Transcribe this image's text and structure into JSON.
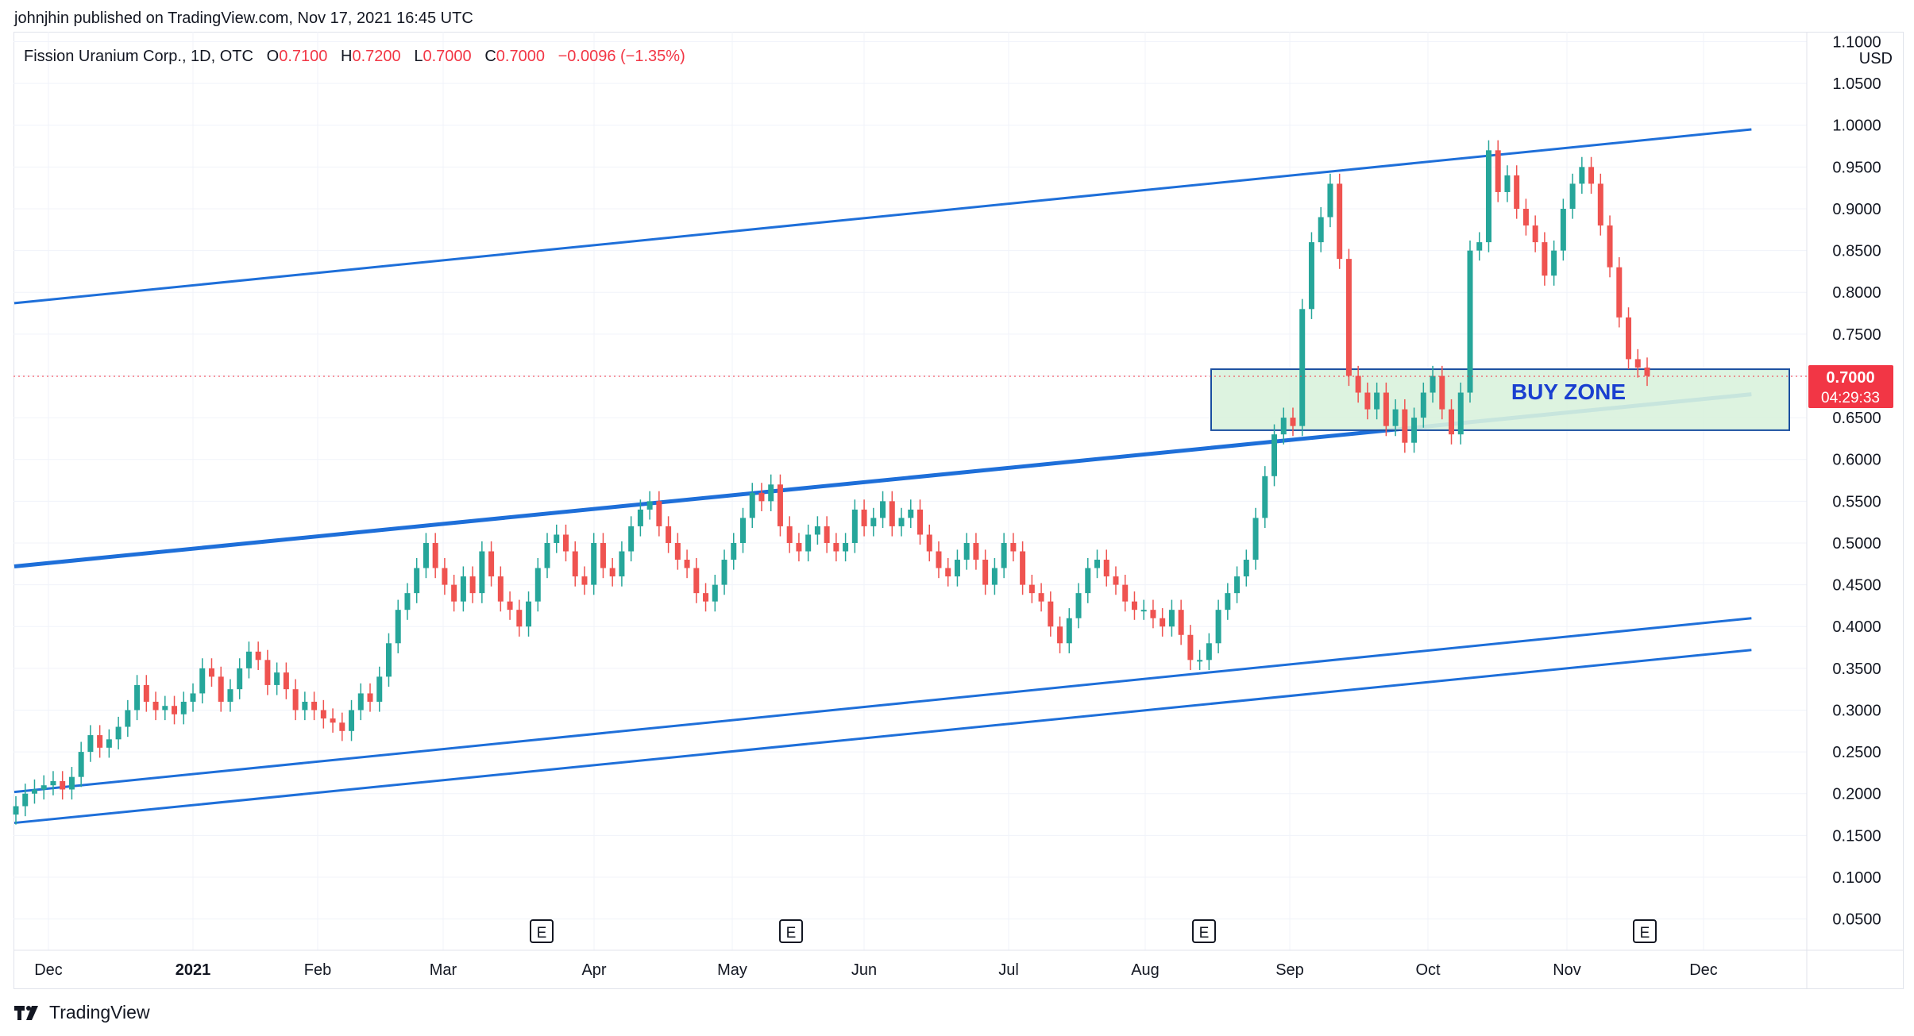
{
  "publish_line": "johnjhin published on TradingView.com, Nov 17, 2021 16:45 UTC",
  "legend": {
    "symbol": "Fission Uranium Corp., 1D, OTC",
    "o_label": "O",
    "o_value": "0.7100",
    "h_label": "H",
    "h_value": "0.7200",
    "l_label": "L",
    "l_value": "0.7000",
    "c_label": "C",
    "c_value": "0.7000",
    "change": "−0.0096 (−1.35%)"
  },
  "footer_brand": "TradingView",
  "colors": {
    "up": "#26a69a",
    "down": "#ef5350",
    "line": "#1e6fd9",
    "zone_fill": "#d9f2dd",
    "zone_border": "#1a4fa0",
    "price_tag": "#f23645"
  },
  "chart_data": {
    "type": "candlestick",
    "currency": "USD",
    "ylim": [
      0.0,
      1.1
    ],
    "y_ticks": [
      "1.1000",
      "1.0500",
      "1.0000",
      "0.9500",
      "0.9000",
      "0.8500",
      "0.8000",
      "0.7500",
      "0.7000",
      "0.6500",
      "0.6000",
      "0.5500",
      "0.5000",
      "0.4500",
      "0.4000",
      "0.3500",
      "0.3000",
      "0.2500",
      "0.2000",
      "0.1500",
      "0.1000",
      "0.0500"
    ],
    "x_ticks": [
      "Dec",
      "2021",
      "Feb",
      "Mar",
      "Apr",
      "May",
      "Jun",
      "Jul",
      "Aug",
      "Sep",
      "Oct",
      "Nov",
      "Dec"
    ],
    "earnings_markers": [
      "E",
      "E",
      "E",
      "E"
    ],
    "last_price": "0.7000",
    "countdown": "04:29:33",
    "annotation": "BUY ZONE",
    "buy_zone": [
      0.635,
      0.708
    ],
    "trendlines": [
      {
        "name": "upper channel",
        "from": [
          "2020-11-23",
          0.787
        ],
        "to": [
          "2021-11-30",
          0.995
        ]
      },
      {
        "name": "middle channel",
        "from": [
          "2020-11-23",
          0.472
        ],
        "to": [
          "2021-11-30",
          0.678
        ]
      },
      {
        "name": "lower channel a",
        "from": [
          "2020-11-23",
          0.202
        ],
        "to": [
          "2021-11-30",
          0.41
        ]
      },
      {
        "name": "lower channel b",
        "from": [
          "2020-11-23",
          0.165
        ],
        "to": [
          "2021-11-30",
          0.372
        ]
      }
    ],
    "closes": [
      0.185,
      0.2,
      0.205,
      0.21,
      0.215,
      0.205,
      0.22,
      0.25,
      0.27,
      0.255,
      0.265,
      0.28,
      0.3,
      0.33,
      0.31,
      0.3,
      0.305,
      0.295,
      0.31,
      0.32,
      0.35,
      0.34,
      0.31,
      0.325,
      0.35,
      0.37,
      0.36,
      0.33,
      0.345,
      0.325,
      0.3,
      0.31,
      0.3,
      0.29,
      0.285,
      0.275,
      0.3,
      0.32,
      0.31,
      0.34,
      0.38,
      0.42,
      0.44,
      0.47,
      0.5,
      0.47,
      0.45,
      0.43,
      0.46,
      0.44,
      0.49,
      0.46,
      0.43,
      0.42,
      0.4,
      0.43,
      0.47,
      0.5,
      0.51,
      0.49,
      0.46,
      0.45,
      0.5,
      0.47,
      0.46,
      0.49,
      0.52,
      0.54,
      0.55,
      0.52,
      0.5,
      0.48,
      0.47,
      0.44,
      0.43,
      0.45,
      0.48,
      0.5,
      0.53,
      0.56,
      0.55,
      0.57,
      0.52,
      0.5,
      0.49,
      0.51,
      0.52,
      0.5,
      0.49,
      0.5,
      0.54,
      0.52,
      0.53,
      0.55,
      0.52,
      0.53,
      0.54,
      0.51,
      0.49,
      0.47,
      0.46,
      0.48,
      0.5,
      0.48,
      0.45,
      0.47,
      0.5,
      0.49,
      0.45,
      0.44,
      0.43,
      0.4,
      0.38,
      0.41,
      0.44,
      0.47,
      0.48,
      0.46,
      0.45,
      0.43,
      0.42,
      0.42,
      0.41,
      0.4,
      0.42,
      0.39,
      0.36,
      0.36,
      0.38,
      0.42,
      0.44,
      0.46,
      0.48,
      0.53,
      0.58,
      0.63,
      0.65,
      0.64,
      0.78,
      0.86,
      0.89,
      0.93,
      0.84,
      0.7,
      0.68,
      0.66,
      0.68,
      0.64,
      0.66,
      0.62,
      0.65,
      0.68,
      0.7,
      0.66,
      0.63,
      0.68,
      0.85,
      0.86,
      0.97,
      0.92,
      0.94,
      0.9,
      0.88,
      0.86,
      0.82,
      0.85,
      0.9,
      0.93,
      0.95,
      0.93,
      0.88,
      0.83,
      0.77,
      0.72,
      0.71,
      0.7
    ]
  }
}
